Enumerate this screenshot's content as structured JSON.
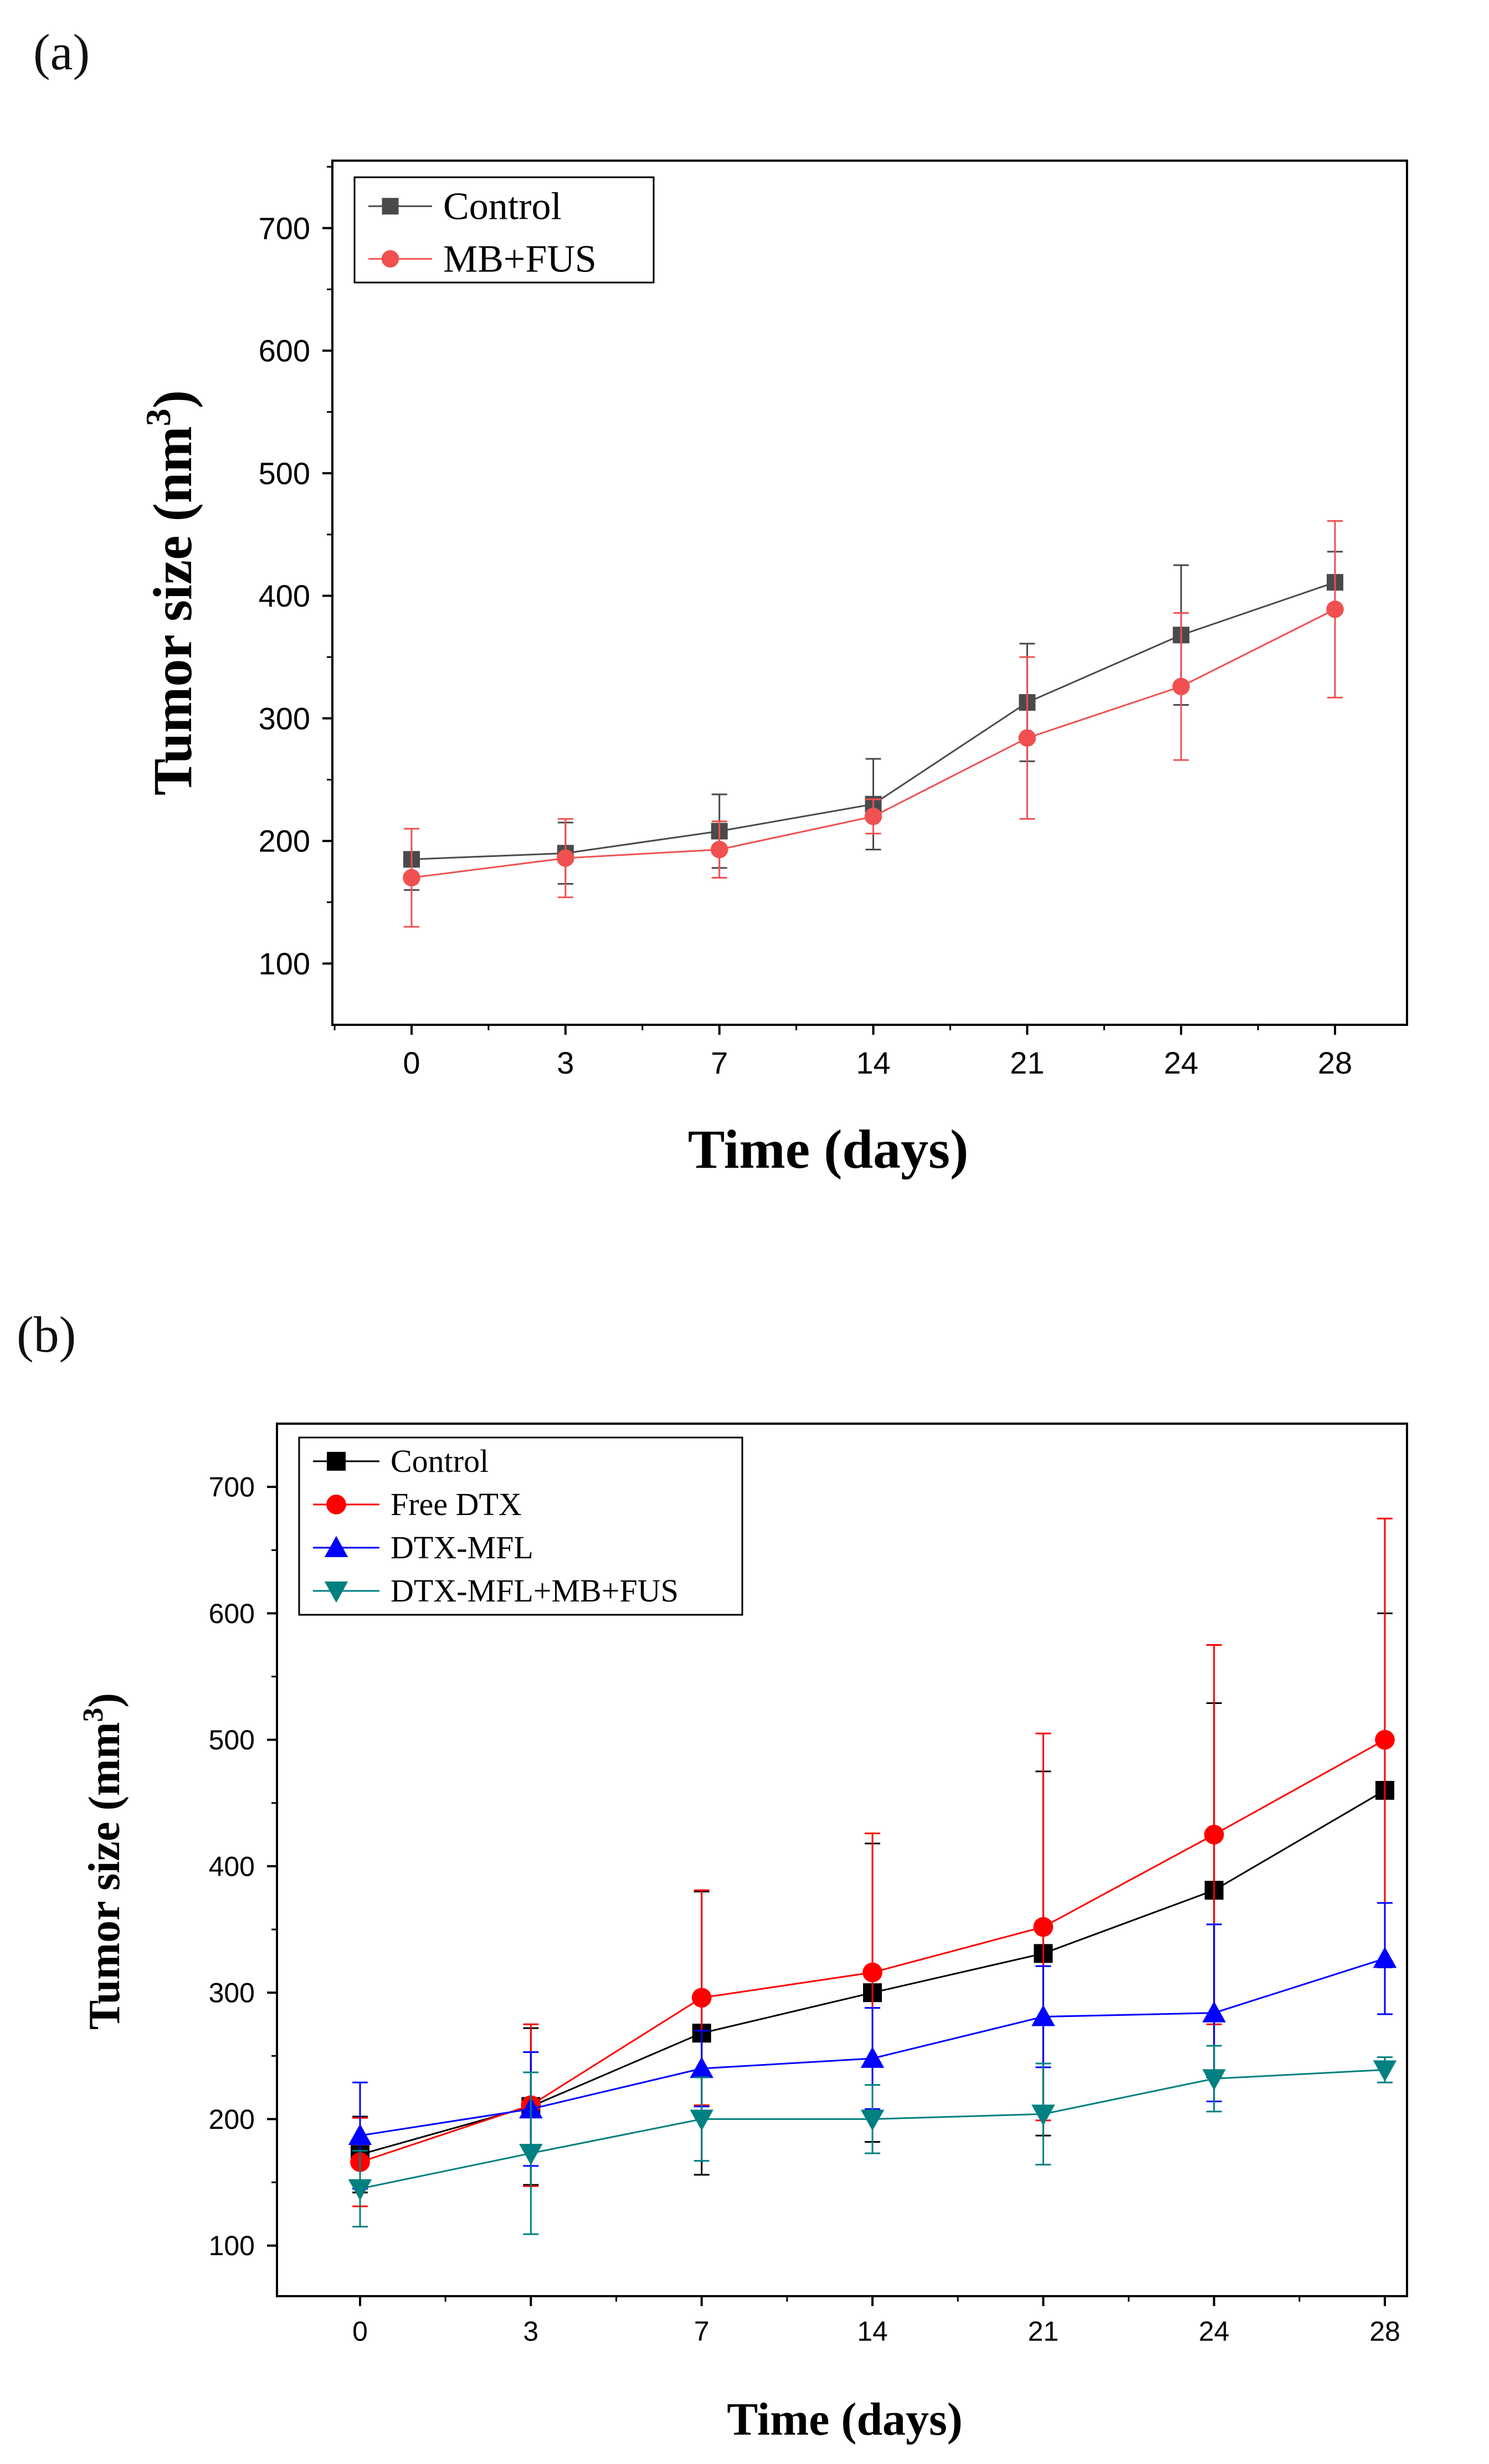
{
  "panels": [
    {
      "label": "(a)",
      "title": "",
      "xlabel": "Time (days)",
      "ylabel_main": "Tumor size (nm",
      "ylabel_sup": "3",
      "ylabel_close": ")"
    },
    {
      "label": "(b)",
      "title": "",
      "xlabel": "Time (days)",
      "ylabel_main": "Tumor size (mm",
      "ylabel_sup": "3",
      "ylabel_close": ")"
    }
  ],
  "chart_data": [
    {
      "type": "line",
      "title": "",
      "xlabel": "Time (days)",
      "ylabel": "Tumor size (nm3)",
      "categories": [
        "0",
        "3",
        "7",
        "14",
        "21",
        "24",
        "28"
      ],
      "yticks": [
        100,
        200,
        300,
        400,
        500,
        600,
        700
      ],
      "ylim": [
        50,
        755
      ],
      "legend_position": "top-left",
      "grid": false,
      "series": [
        {
          "name": "Control",
          "marker": "square",
          "color": "#4a4a4a",
          "values": [
            185,
            190,
            208,
            230,
            313,
            368,
            411
          ],
          "errors": [
            25,
            25,
            30,
            37,
            48,
            57,
            25
          ]
        },
        {
          "name": "MB+FUS",
          "marker": "circle",
          "color": "#f05050",
          "values": [
            170,
            186,
            193,
            220,
            284,
            326,
            389
          ],
          "errors": [
            40,
            32,
            23,
            14,
            66,
            60,
            72
          ]
        }
      ]
    },
    {
      "type": "line",
      "title": "",
      "xlabel": "Time (days)",
      "ylabel": "Tumor size (mm3)",
      "categories": [
        "0",
        "3",
        "7",
        "14",
        "21",
        "24",
        "28"
      ],
      "yticks": [
        100,
        200,
        300,
        400,
        500,
        600,
        700
      ],
      "ylim": [
        60,
        750
      ],
      "legend_position": "top-left",
      "grid": false,
      "series": [
        {
          "name": "Control",
          "marker": "square",
          "color": "#000000",
          "values": [
            172,
            210,
            268,
            300,
            331,
            381,
            460
          ],
          "errors": [
            30,
            62,
            112,
            118,
            144,
            148,
            140
          ]
        },
        {
          "name": "Free DTX",
          "marker": "circle",
          "color": "#ff0000",
          "values": [
            166,
            211,
            296,
            316,
            352,
            425,
            500
          ],
          "errors": [
            35,
            64,
            85,
            110,
            153,
            150,
            175
          ]
        },
        {
          "name": "DTX-MFL",
          "marker": "triangle-up",
          "color": "#0000ff",
          "values": [
            187,
            208,
            240,
            248,
            281,
            284,
            327
          ],
          "errors": [
            42,
            45,
            30,
            40,
            40,
            70,
            44
          ]
        },
        {
          "name": "DTX-MFL+MB+FUS",
          "marker": "triangle-down",
          "color": "#008080",
          "values": [
            145,
            173,
            200,
            200,
            204,
            232,
            239
          ],
          "errors": [
            30,
            64,
            33,
            27,
            40,
            26,
            10
          ]
        }
      ]
    }
  ]
}
